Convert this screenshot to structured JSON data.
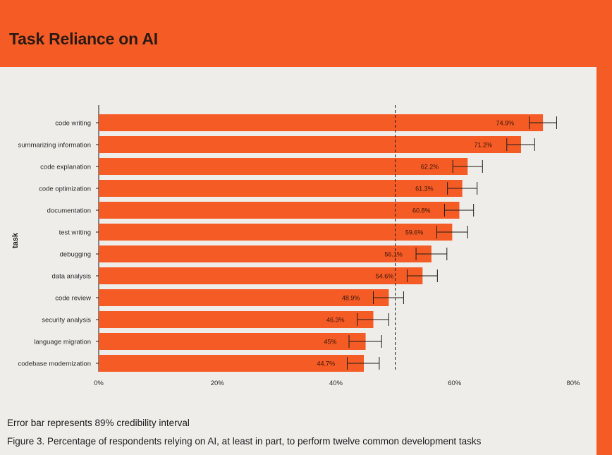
{
  "page": {
    "title": "Task Reliance on AI",
    "error_note": "Error bar represents 89% credibility interval",
    "caption": "Figure 3. Percentage of respondents relying on AI, at least in part, to perform twelve common development tasks"
  },
  "colors": {
    "accent": "#f55b25",
    "background": "#efedea",
    "text": "#1c1c1c"
  },
  "chart_data": {
    "type": "bar",
    "orientation": "horizontal",
    "title": "Task Reliance on AI",
    "xlabel": "",
    "ylabel": "task",
    "xlim": [
      0,
      80
    ],
    "x_ticks": [
      0,
      20,
      40,
      60,
      80
    ],
    "x_tick_labels": [
      "0%",
      "20%",
      "40%",
      "60%",
      "80%"
    ],
    "reference_line": 50,
    "categories": [
      "code writing",
      "summarizing information",
      "code explanation",
      "code optimization",
      "documentation",
      "test writing",
      "debugging",
      "data analysis",
      "code review",
      "security analysis",
      "language migration",
      "codebase modernization"
    ],
    "values": [
      74.9,
      71.2,
      62.2,
      61.3,
      60.8,
      59.6,
      56.1,
      54.6,
      48.9,
      46.3,
      45,
      44.7
    ],
    "value_labels": [
      "74.9%",
      "71.2%",
      "62.2%",
      "61.3%",
      "60.8%",
      "59.6%",
      "56.1%",
      "54.6%",
      "48.9%",
      "46.3%",
      "45%",
      "44.7%"
    ],
    "ci_low": [
      72.6,
      68.8,
      59.7,
      58.8,
      58.3,
      57.0,
      53.5,
      52.0,
      46.3,
      43.6,
      42.2,
      41.9
    ],
    "ci_high": [
      77.2,
      73.5,
      64.7,
      63.8,
      63.2,
      62.2,
      58.7,
      57.1,
      51.4,
      48.9,
      47.7,
      47.3
    ]
  }
}
